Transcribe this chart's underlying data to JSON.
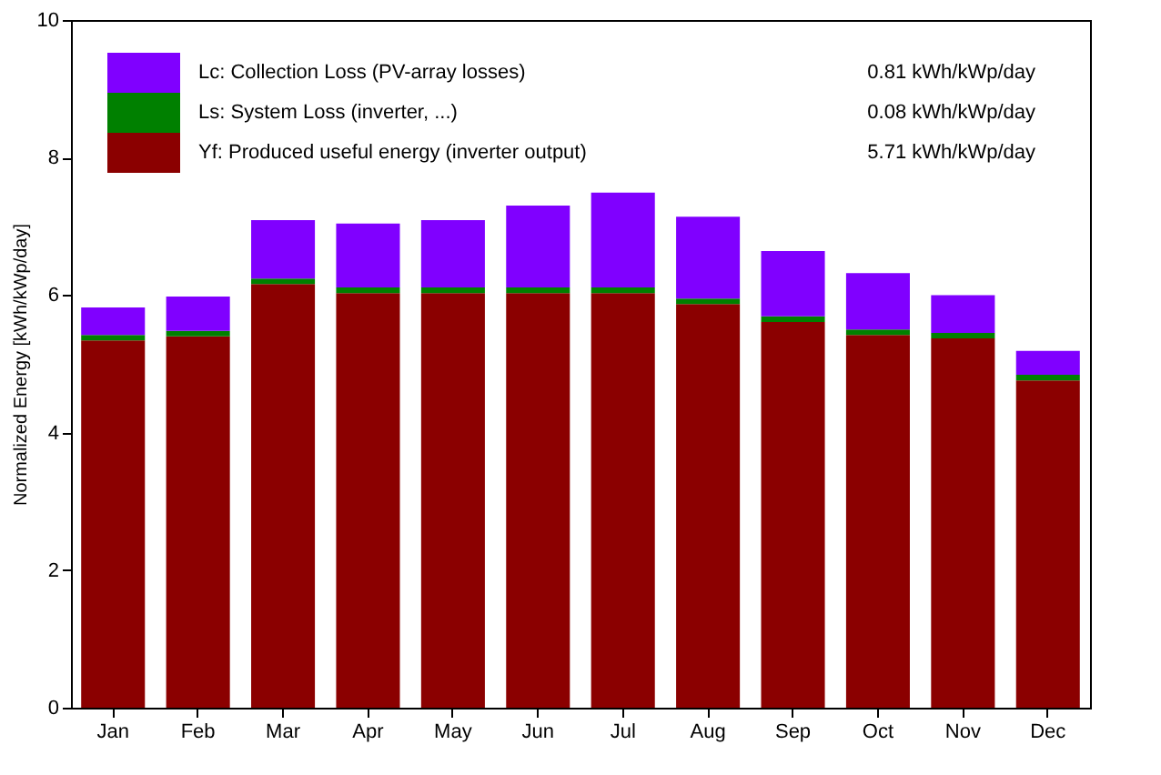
{
  "chart_data": {
    "type": "bar",
    "stacked": true,
    "ylabel": "Normalized Energy [kWh/kWp/day]",
    "categories": [
      "Jan",
      "Feb",
      "Mar",
      "Apr",
      "May",
      "Jun",
      "Jul",
      "Aug",
      "Sep",
      "Oct",
      "Nov",
      "Dec"
    ],
    "series": [
      {
        "name": "Yf: Produced useful energy (inverter output)",
        "color": "#8b0000",
        "values": [
          5.34,
          5.4,
          6.16,
          6.03,
          6.03,
          6.03,
          6.03,
          5.87,
          5.61,
          5.42,
          5.37,
          4.76
        ]
      },
      {
        "name": "Ls: System Loss (inverter, ...)",
        "color": "#008000",
        "values": [
          0.08,
          0.08,
          0.08,
          0.08,
          0.08,
          0.08,
          0.08,
          0.08,
          0.08,
          0.08,
          0.08,
          0.08
        ]
      },
      {
        "name": "Lc: Collection Loss (PV-array losses)",
        "color": "#8000ff",
        "values": [
          0.4,
          0.5,
          0.85,
          0.93,
          0.98,
          1.19,
          1.38,
          1.19,
          0.95,
          0.82,
          0.55,
          0.35
        ]
      }
    ],
    "annotations": [
      "5.71 kWh/kWp/day",
      "0.08 kWh/kWp/day",
      "0.81 kWh/kWp/day"
    ],
    "ylim": [
      0,
      10
    ],
    "yticks": [
      0,
      2,
      4,
      6,
      8,
      10
    ],
    "grid": false,
    "legend": "top left"
  }
}
